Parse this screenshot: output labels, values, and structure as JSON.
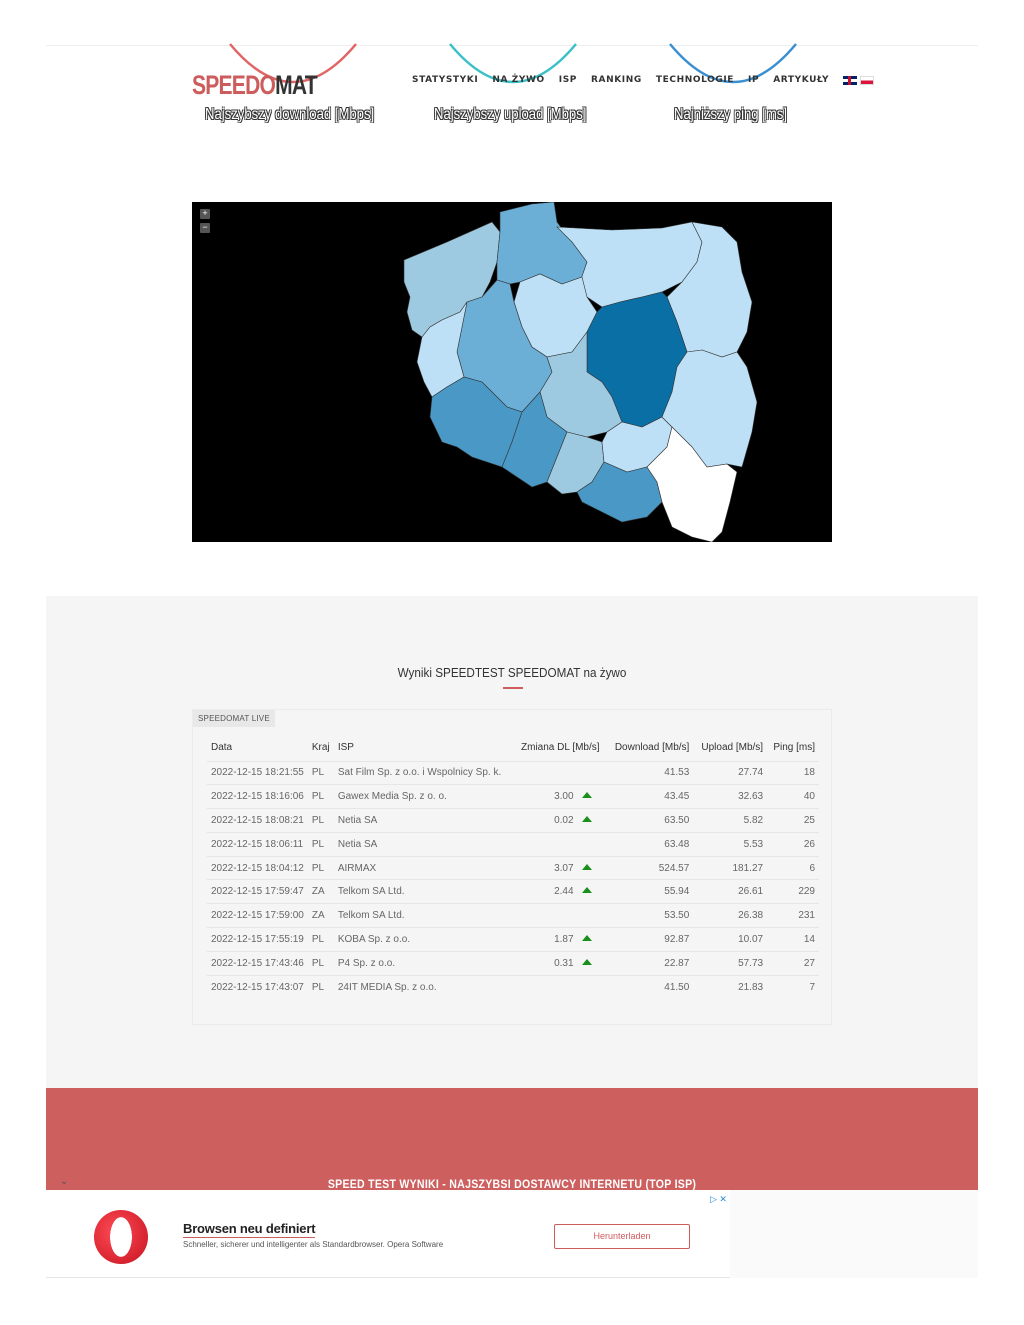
{
  "header": {
    "logo_part1": "SPEEDO",
    "logo_part2": "MAT",
    "nav": [
      "STATYSTYKI",
      "NA ŻYWO",
      "ISP",
      "RANKING",
      "TECHNOLOGIE",
      "IP",
      "ARTYKUŁY"
    ]
  },
  "gauges": [
    {
      "label": "Najszybszy download [Mbps]",
      "color": "#e06565"
    },
    {
      "label": "Najszybszy upload [Mbps]",
      "color": "#3bc0c8"
    },
    {
      "label": "Najniższy ping [ms]",
      "color": "#3a8fd0"
    }
  ],
  "map": {
    "zoom_in": "+",
    "zoom_out": "−"
  },
  "live": {
    "title": "Wyniki SPEEDTEST SPEEDOMAT na żywo",
    "panel_tag": "SPEEDOMAT LIVE",
    "columns": [
      "Data",
      "Kraj",
      "ISP",
      "Zmiana DL [Mb/s]",
      "Download [Mb/s]",
      "Upload [Mb/s]",
      "Ping [ms]"
    ],
    "rows": [
      {
        "date": "2022-12-15 18:21:55",
        "country": "PL",
        "isp": "Sat Film Sp. z o.o. i Wspolnicy Sp. k.",
        "change": "",
        "download": "41.53",
        "upload": "27.74",
        "ping": "18"
      },
      {
        "date": "2022-12-15 18:16:06",
        "country": "PL",
        "isp": "Gawex Media Sp. z o. o.",
        "change": "3.00",
        "download": "43.45",
        "upload": "32.63",
        "ping": "40"
      },
      {
        "date": "2022-12-15 18:08:21",
        "country": "PL",
        "isp": "Netia SA",
        "change": "0.02",
        "download": "63.50",
        "upload": "5.82",
        "ping": "25"
      },
      {
        "date": "2022-12-15 18:06:11",
        "country": "PL",
        "isp": "Netia SA",
        "change": "",
        "download": "63.48",
        "upload": "5.53",
        "ping": "26"
      },
      {
        "date": "2022-12-15 18:04:12",
        "country": "PL",
        "isp": "AIRMAX",
        "change": "3.07",
        "download": "524.57",
        "upload": "181.27",
        "ping": "6"
      },
      {
        "date": "2022-12-15 17:59:47",
        "country": "ZA",
        "isp": "Telkom SA Ltd.",
        "change": "2.44",
        "download": "55.94",
        "upload": "26.61",
        "ping": "229"
      },
      {
        "date": "2022-12-15 17:59:00",
        "country": "ZA",
        "isp": "Telkom SA Ltd.",
        "change": "",
        "download": "53.50",
        "upload": "26.38",
        "ping": "231"
      },
      {
        "date": "2022-12-15 17:55:19",
        "country": "PL",
        "isp": "KOBA Sp. z o.o.",
        "change": "1.87",
        "download": "92.87",
        "upload": "10.07",
        "ping": "14"
      },
      {
        "date": "2022-12-15 17:43:46",
        "country": "PL",
        "isp": "P4 Sp. z o.o.",
        "change": "0.31",
        "download": "22.87",
        "upload": "57.73",
        "ping": "27"
      },
      {
        "date": "2022-12-15 17:43:07",
        "country": "PL",
        "isp": "24IT MEDIA Sp. z o.o.",
        "change": "",
        "download": "41.50",
        "upload": "21.83",
        "ping": "7"
      }
    ]
  },
  "top_isp": {
    "title": "SPEED TEST WYNIKI - NAJSZYBSI DOSTAWCY INTERNETU (TOP ISP)"
  },
  "ad": {
    "title": "Browsen neu definiert",
    "subtitle": "Schneller, sicherer und intelligenter als Standardbrowser. Opera Software",
    "button": "Herunterladen",
    "icons": "▷ ✕"
  }
}
